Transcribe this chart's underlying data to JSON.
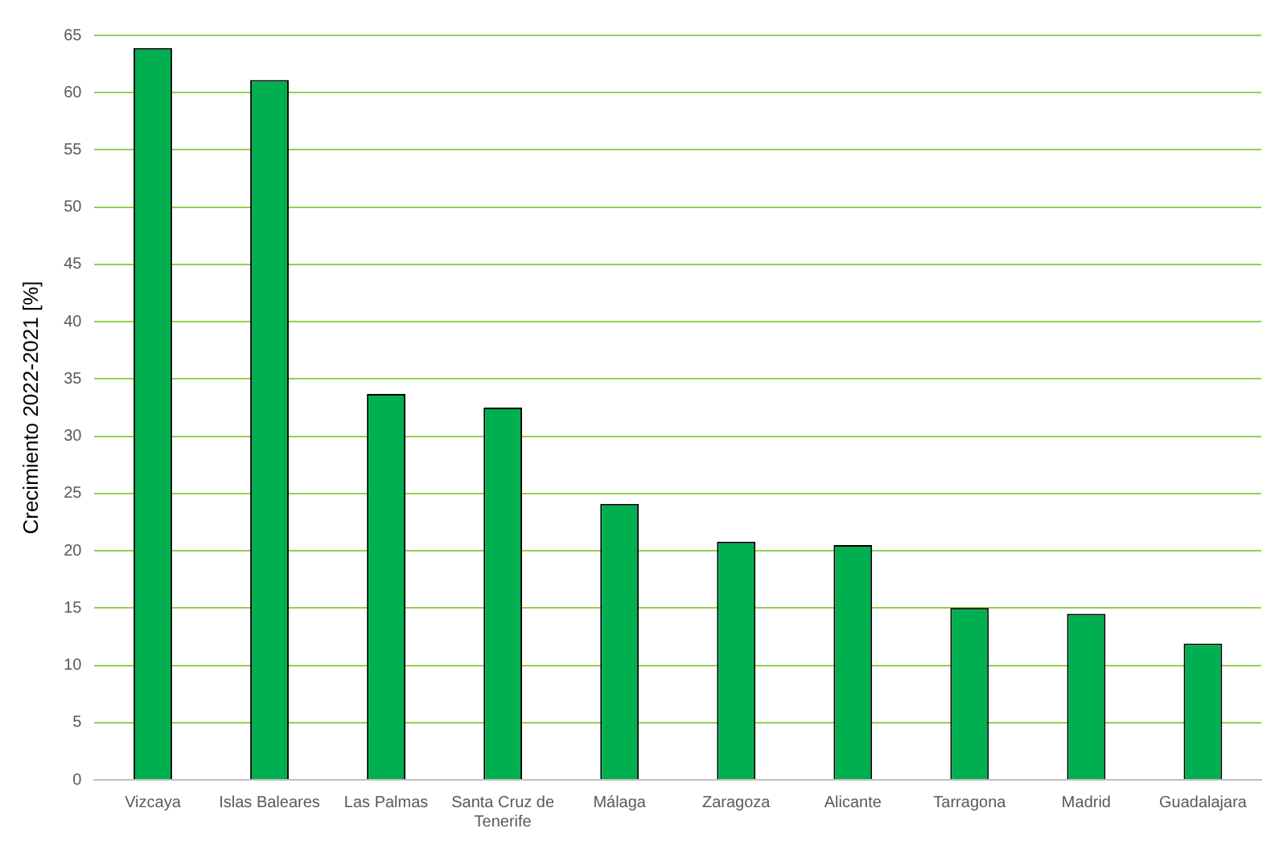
{
  "chart_data": {
    "type": "bar",
    "ylabel": "Crecimiento 2022-2021 [%]",
    "categories": [
      "Vizcaya",
      "Islas Baleares",
      "Las Palmas",
      "Santa Cruz de Tenerife",
      "Málaga",
      "Zaragoza",
      "Alicante",
      "Tarragona",
      "Madrid",
      "Guadalajara"
    ],
    "values": [
      63.9,
      61.1,
      33.7,
      32.5,
      24.1,
      20.8,
      20.5,
      15.0,
      14.5,
      11.9
    ],
    "color": "#00b050",
    "ylim": [
      0,
      65
    ],
    "yticks": [
      0,
      5,
      10,
      15,
      20,
      25,
      30,
      35,
      40,
      45,
      50,
      55,
      60,
      65
    ],
    "grid": "y"
  }
}
